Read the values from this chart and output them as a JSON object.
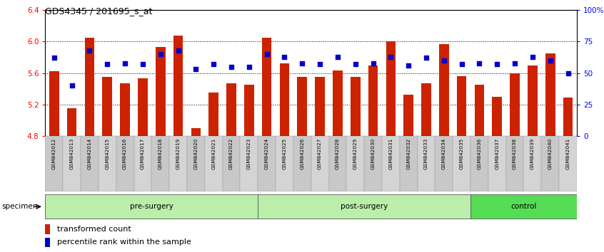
{
  "title": "GDS4345 / 201695_s_at",
  "samples": [
    "GSM842012",
    "GSM842013",
    "GSM842014",
    "GSM842015",
    "GSM842016",
    "GSM842017",
    "GSM842018",
    "GSM842019",
    "GSM842020",
    "GSM842021",
    "GSM842022",
    "GSM842023",
    "GSM842024",
    "GSM842025",
    "GSM842026",
    "GSM842027",
    "GSM842028",
    "GSM842029",
    "GSM842030",
    "GSM842031",
    "GSM842032",
    "GSM842033",
    "GSM842034",
    "GSM842035",
    "GSM842036",
    "GSM842037",
    "GSM842038",
    "GSM842039",
    "GSM842040",
    "GSM842041"
  ],
  "bar_values": [
    5.62,
    5.15,
    6.05,
    5.55,
    5.47,
    5.53,
    5.93,
    6.08,
    4.9,
    5.35,
    5.47,
    5.45,
    6.05,
    5.72,
    5.55,
    5.55,
    5.63,
    5.55,
    5.7,
    6.0,
    5.33,
    5.47,
    5.97,
    5.56,
    5.45,
    5.3,
    5.6,
    5.7,
    5.85,
    5.29
  ],
  "percentile_values": [
    62,
    40,
    68,
    57,
    58,
    57,
    65,
    68,
    53,
    57,
    55,
    55,
    65,
    63,
    58,
    57,
    63,
    57,
    58,
    63,
    56,
    62,
    60,
    57,
    58,
    57,
    58,
    63,
    60,
    50
  ],
  "ymin": 4.8,
  "ymax": 6.4,
  "yticks": [
    4.8,
    5.2,
    5.6,
    6.0,
    6.4
  ],
  "ytick_labels": [
    "4.8",
    "5.2",
    "5.6",
    "6.0",
    "6.4"
  ],
  "grid_lines": [
    5.2,
    5.6,
    6.0
  ],
  "bar_color": "#cc2200",
  "dot_color": "#0000cc",
  "bar_bottom": 4.8,
  "right_yticks": [
    0,
    25,
    50,
    75,
    100
  ],
  "right_ytick_labels": [
    "0",
    "25",
    "50",
    "75",
    "100%"
  ],
  "group_pre_color": "#bbeeaa",
  "group_post_color": "#bbeeaa",
  "group_ctrl_color": "#55dd55",
  "legend_bar_label": "transformed count",
  "legend_dot_label": "percentile rank within the sample",
  "specimen_label": "specimen",
  "xtick_bg_color": "#cccccc",
  "xtick_line_color": "#999999"
}
